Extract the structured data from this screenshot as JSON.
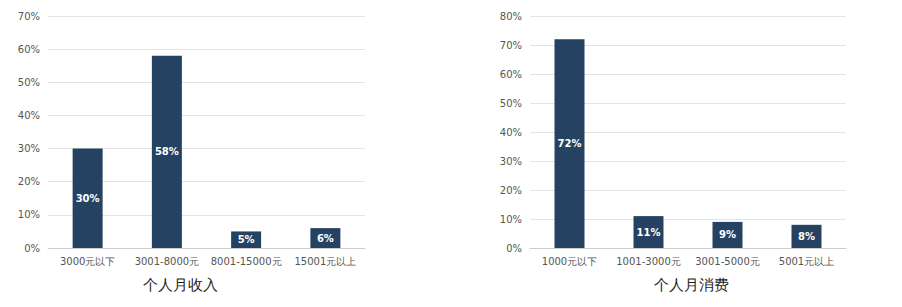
{
  "chart_data": [
    {
      "type": "bar",
      "title": "个人月收入",
      "categories": [
        "3000元以下",
        "3001-8000元",
        "8001-15000元",
        "15001元以上"
      ],
      "values": [
        30,
        58,
        5,
        6
      ],
      "value_labels": [
        "30%",
        "58%",
        "5%",
        "6%"
      ],
      "color": "#264262",
      "ylim": [
        0,
        70
      ],
      "yticks": [
        {
          "value": 0,
          "label": "0%"
        },
        {
          "value": 10,
          "label": "10%"
        },
        {
          "value": 20,
          "label": "20%"
        },
        {
          "value": 30,
          "label": "30%"
        },
        {
          "value": 40,
          "label": "40%"
        },
        {
          "value": 50,
          "label": "50%"
        },
        {
          "value": 60,
          "label": "60%"
        },
        {
          "value": 70,
          "label": "70%"
        }
      ],
      "grid": true,
      "data_labels": true
    },
    {
      "type": "bar",
      "title": "个人月消费",
      "categories": [
        "1000元以下",
        "1001-3000元",
        "3001-5000元",
        "5001元以上"
      ],
      "values": [
        72,
        11,
        9,
        8
      ],
      "value_labels": [
        "72%",
        "11%",
        "9%",
        "8%"
      ],
      "color": "#264262",
      "ylim": [
        0,
        80
      ],
      "yticks": [
        {
          "value": 0,
          "label": "0%"
        },
        {
          "value": 10,
          "label": "10%"
        },
        {
          "value": 20,
          "label": "20%"
        },
        {
          "value": 30,
          "label": "30%"
        },
        {
          "value": 40,
          "label": "40%"
        },
        {
          "value": 50,
          "label": "50%"
        },
        {
          "value": 60,
          "label": "60%"
        },
        {
          "value": 70,
          "label": "70%"
        },
        {
          "value": 80,
          "label": "80%"
        }
      ],
      "grid": true,
      "data_labels": true
    }
  ]
}
